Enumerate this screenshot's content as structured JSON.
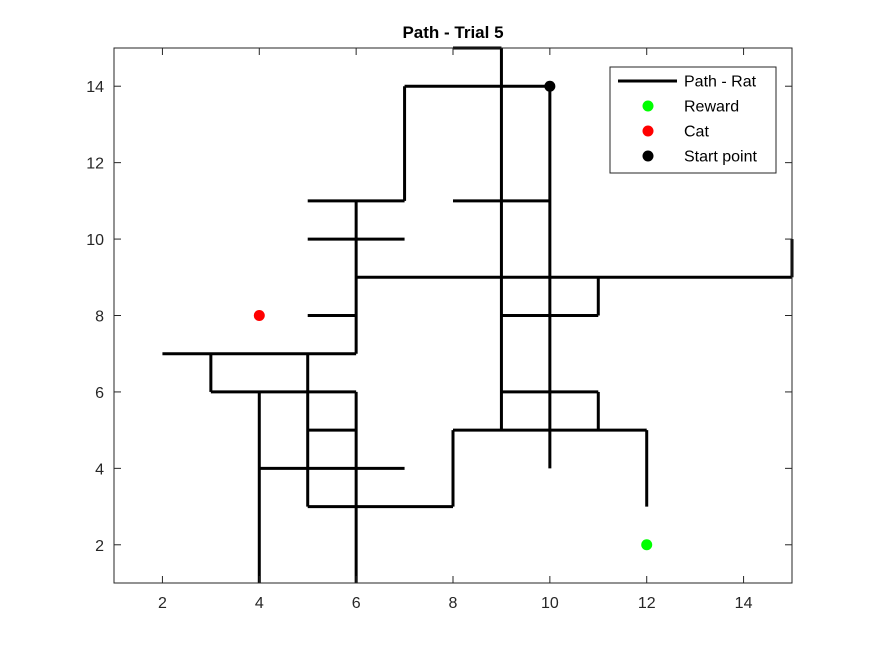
{
  "chart_data": {
    "type": "line",
    "title": "Path - Trial 5",
    "xlabel": "",
    "ylabel": "",
    "xlim": [
      1,
      15
    ],
    "ylim": [
      1,
      15
    ],
    "x_ticks": [
      2,
      4,
      6,
      8,
      10,
      12,
      14
    ],
    "y_ticks": [
      2,
      4,
      6,
      8,
      10,
      12,
      14
    ],
    "x_tick_labels": [
      "2",
      "4",
      "6",
      "8",
      "10",
      "12",
      "14"
    ],
    "y_tick_labels": [
      "2",
      "4",
      "6",
      "8",
      "10",
      "12",
      "14"
    ],
    "grid": false,
    "legend_position": "top-right",
    "legend": [
      {
        "label": "Path - Rat",
        "marker": "line",
        "color": "#000000"
      },
      {
        "label": "Reward",
        "marker": "dot",
        "color": "#00ff00"
      },
      {
        "label": "Cat",
        "marker": "dot",
        "color": "#ff0000"
      },
      {
        "label": "Start point",
        "marker": "dot",
        "color": "#000000"
      }
    ],
    "path": {
      "name": "Path - Rat",
      "color": "#000000",
      "segments": [
        [
          [
            9,
            15
          ],
          [
            9,
            5
          ]
        ],
        [
          [
            8,
            15
          ],
          [
            9,
            15
          ]
        ],
        [
          [
            7,
            14
          ],
          [
            10,
            14
          ]
        ],
        [
          [
            10,
            14
          ],
          [
            10,
            4
          ]
        ],
        [
          [
            7,
            14
          ],
          [
            7,
            11
          ]
        ],
        [
          [
            5,
            11
          ],
          [
            7,
            11
          ]
        ],
        [
          [
            6,
            11
          ],
          [
            6,
            7
          ]
        ],
        [
          [
            5,
            10
          ],
          [
            7,
            10
          ]
        ],
        [
          [
            5,
            8
          ],
          [
            6,
            8
          ]
        ],
        [
          [
            6,
            9
          ],
          [
            15,
            9
          ]
        ],
        [
          [
            15,
            9
          ],
          [
            15,
            10
          ]
        ],
        [
          [
            8,
            11
          ],
          [
            10,
            11
          ]
        ],
        [
          [
            9,
            8
          ],
          [
            11,
            8
          ]
        ],
        [
          [
            11,
            8
          ],
          [
            11,
            9
          ]
        ],
        [
          [
            9,
            6
          ],
          [
            11,
            6
          ]
        ],
        [
          [
            11,
            6
          ],
          [
            11,
            5
          ]
        ],
        [
          [
            8,
            5
          ],
          [
            12,
            5
          ]
        ],
        [
          [
            12,
            5
          ],
          [
            12,
            3
          ]
        ],
        [
          [
            8,
            5
          ],
          [
            8,
            3
          ]
        ],
        [
          [
            5,
            3
          ],
          [
            8,
            3
          ]
        ],
        [
          [
            2,
            7
          ],
          [
            6,
            7
          ]
        ],
        [
          [
            3,
            7
          ],
          [
            3,
            6
          ]
        ],
        [
          [
            3,
            6
          ],
          [
            6,
            6
          ]
        ],
        [
          [
            5,
            7
          ],
          [
            5,
            3
          ]
        ],
        [
          [
            6,
            6
          ],
          [
            6,
            1
          ]
        ],
        [
          [
            4,
            6
          ],
          [
            4,
            1
          ]
        ],
        [
          [
            4,
            4
          ],
          [
            7,
            4
          ]
        ],
        [
          [
            5,
            5
          ],
          [
            6,
            5
          ]
        ]
      ]
    },
    "points": [
      {
        "name": "Reward",
        "x": 12,
        "y": 2,
        "color": "#00ff00"
      },
      {
        "name": "Cat",
        "x": 4,
        "y": 8,
        "color": "#ff0000"
      },
      {
        "name": "Start point",
        "x": 10,
        "y": 14,
        "color": "#000000"
      }
    ]
  }
}
